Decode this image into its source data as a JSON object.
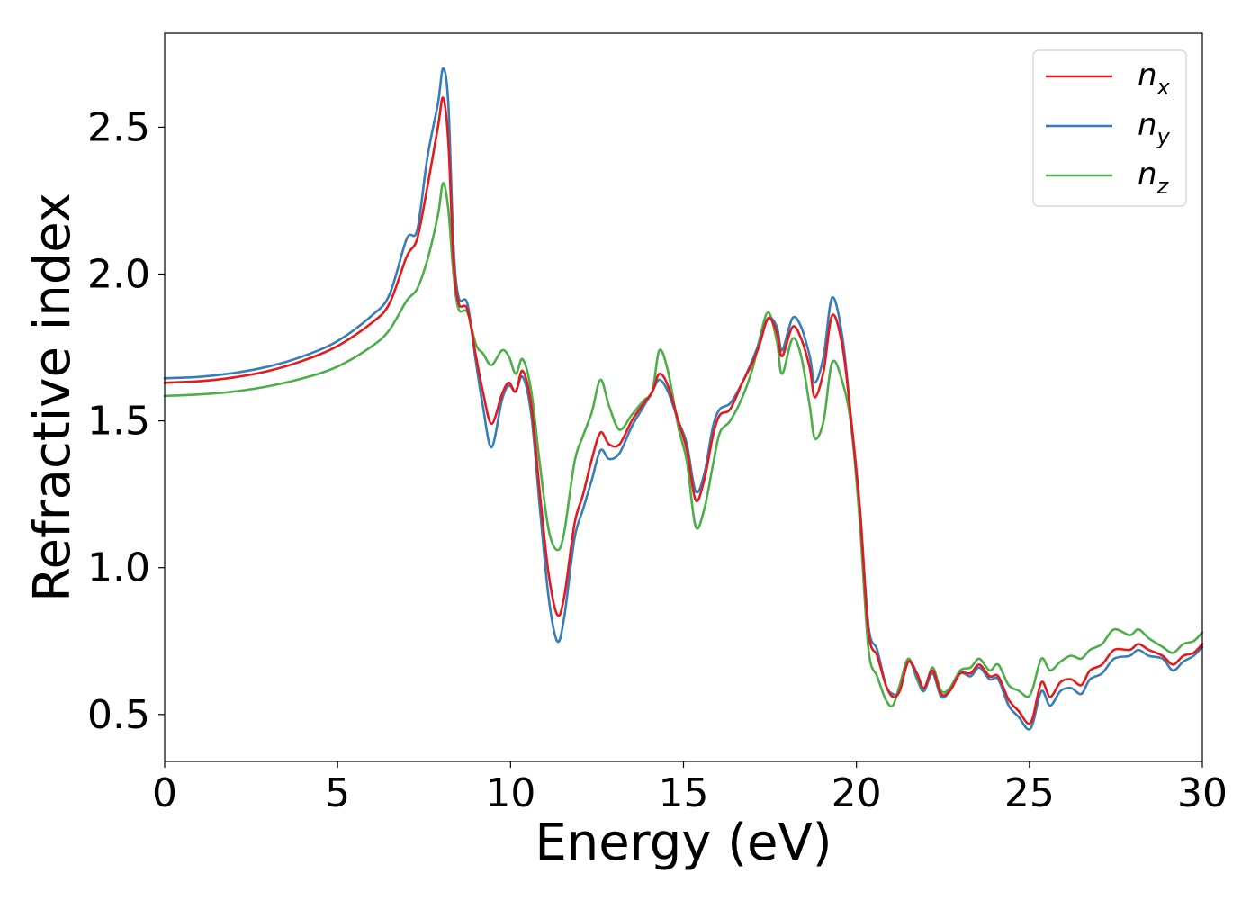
{
  "chart_data": {
    "type": "line",
    "title": "",
    "xlabel": "Energy (eV)",
    "ylabel": "Refractive index",
    "xlim": [
      0,
      30
    ],
    "ylim": [
      0.34,
      2.82
    ],
    "xticks": [
      0,
      5,
      10,
      15,
      20,
      25,
      30
    ],
    "xtick_labels": [
      "0",
      "5",
      "10",
      "15",
      "20",
      "25",
      "30"
    ],
    "yticks": [
      0.5,
      1.0,
      1.5,
      2.0,
      2.5
    ],
    "ytick_labels": [
      "0.5",
      "1.0",
      "1.5",
      "2.0",
      "2.5"
    ],
    "grid": false,
    "legend_position": "top-right",
    "series": [
      {
        "name": "n_x",
        "label_base": "n",
        "label_sub": "x",
        "color": "#e41a1c",
        "points": [
          [
            0,
            1.63
          ],
          [
            1,
            1.635
          ],
          [
            2,
            1.648
          ],
          [
            3,
            1.67
          ],
          [
            4,
            1.705
          ],
          [
            5,
            1.755
          ],
          [
            6,
            1.835
          ],
          [
            6.5,
            1.9
          ],
          [
            7,
            2.06
          ],
          [
            7.3,
            2.12
          ],
          [
            7.6,
            2.3
          ],
          [
            7.9,
            2.5
          ],
          [
            8.05,
            2.6
          ],
          [
            8.2,
            2.45
          ],
          [
            8.35,
            2.05
          ],
          [
            8.5,
            1.9
          ],
          [
            8.75,
            1.88
          ],
          [
            9.0,
            1.72
          ],
          [
            9.2,
            1.6
          ],
          [
            9.45,
            1.49
          ],
          [
            9.75,
            1.59
          ],
          [
            9.95,
            1.63
          ],
          [
            10.15,
            1.6
          ],
          [
            10.35,
            1.67
          ],
          [
            10.6,
            1.55
          ],
          [
            10.85,
            1.25
          ],
          [
            11.1,
            0.98
          ],
          [
            11.35,
            0.84
          ],
          [
            11.55,
            0.9
          ],
          [
            11.85,
            1.15
          ],
          [
            12.1,
            1.25
          ],
          [
            12.35,
            1.37
          ],
          [
            12.6,
            1.46
          ],
          [
            12.85,
            1.42
          ],
          [
            13.15,
            1.42
          ],
          [
            13.5,
            1.5
          ],
          [
            13.85,
            1.56
          ],
          [
            14.1,
            1.6
          ],
          [
            14.3,
            1.66
          ],
          [
            14.55,
            1.62
          ],
          [
            14.85,
            1.5
          ],
          [
            15.1,
            1.4
          ],
          [
            15.35,
            1.23
          ],
          [
            15.6,
            1.3
          ],
          [
            15.85,
            1.45
          ],
          [
            16.05,
            1.52
          ],
          [
            16.35,
            1.54
          ],
          [
            16.7,
            1.63
          ],
          [
            17.0,
            1.7
          ],
          [
            17.2,
            1.76
          ],
          [
            17.45,
            1.85
          ],
          [
            17.7,
            1.8
          ],
          [
            17.85,
            1.72
          ],
          [
            18.15,
            1.82
          ],
          [
            18.4,
            1.78
          ],
          [
            18.65,
            1.68
          ],
          [
            18.8,
            1.58
          ],
          [
            19.05,
            1.67
          ],
          [
            19.3,
            1.86
          ],
          [
            19.6,
            1.75
          ],
          [
            19.85,
            1.5
          ],
          [
            20.1,
            1.2
          ],
          [
            20.35,
            0.78
          ],
          [
            20.6,
            0.7
          ],
          [
            20.85,
            0.6
          ],
          [
            21.05,
            0.56
          ],
          [
            21.25,
            0.58
          ],
          [
            21.5,
            0.68
          ],
          [
            21.75,
            0.64
          ],
          [
            21.95,
            0.59
          ],
          [
            22.2,
            0.65
          ],
          [
            22.45,
            0.57
          ],
          [
            22.7,
            0.58
          ],
          [
            23.0,
            0.64
          ],
          [
            23.3,
            0.64
          ],
          [
            23.55,
            0.67
          ],
          [
            23.85,
            0.63
          ],
          [
            24.1,
            0.63
          ],
          [
            24.4,
            0.55
          ],
          [
            24.7,
            0.51
          ],
          [
            24.95,
            0.47
          ],
          [
            25.1,
            0.49
          ],
          [
            25.35,
            0.61
          ],
          [
            25.6,
            0.56
          ],
          [
            25.9,
            0.61
          ],
          [
            26.2,
            0.62
          ],
          [
            26.5,
            0.6
          ],
          [
            26.75,
            0.65
          ],
          [
            27.1,
            0.67
          ],
          [
            27.45,
            0.72
          ],
          [
            27.9,
            0.72
          ],
          [
            28.15,
            0.74
          ],
          [
            28.45,
            0.72
          ],
          [
            28.85,
            0.7
          ],
          [
            29.15,
            0.67
          ],
          [
            29.45,
            0.7
          ],
          [
            29.75,
            0.71
          ],
          [
            30,
            0.74
          ]
        ]
      },
      {
        "name": "n_y",
        "label_base": "n",
        "label_sub": "y",
        "color": "#377eb8",
        "points": [
          [
            0,
            1.645
          ],
          [
            1,
            1.65
          ],
          [
            2,
            1.663
          ],
          [
            3,
            1.685
          ],
          [
            4,
            1.72
          ],
          [
            5,
            1.772
          ],
          [
            6,
            1.86
          ],
          [
            6.5,
            1.93
          ],
          [
            7,
            2.12
          ],
          [
            7.3,
            2.15
          ],
          [
            7.6,
            2.4
          ],
          [
            7.9,
            2.58
          ],
          [
            8.05,
            2.7
          ],
          [
            8.2,
            2.58
          ],
          [
            8.35,
            2.1
          ],
          [
            8.5,
            1.92
          ],
          [
            8.75,
            1.9
          ],
          [
            9.0,
            1.7
          ],
          [
            9.2,
            1.55
          ],
          [
            9.45,
            1.41
          ],
          [
            9.75,
            1.57
          ],
          [
            9.95,
            1.62
          ],
          [
            10.15,
            1.6
          ],
          [
            10.35,
            1.65
          ],
          [
            10.6,
            1.52
          ],
          [
            10.85,
            1.2
          ],
          [
            11.1,
            0.9
          ],
          [
            11.35,
            0.75
          ],
          [
            11.55,
            0.83
          ],
          [
            11.85,
            1.1
          ],
          [
            12.1,
            1.2
          ],
          [
            12.35,
            1.3
          ],
          [
            12.6,
            1.4
          ],
          [
            12.85,
            1.37
          ],
          [
            13.15,
            1.39
          ],
          [
            13.5,
            1.48
          ],
          [
            13.85,
            1.55
          ],
          [
            14.1,
            1.6
          ],
          [
            14.3,
            1.64
          ],
          [
            14.55,
            1.6
          ],
          [
            14.85,
            1.5
          ],
          [
            15.1,
            1.42
          ],
          [
            15.35,
            1.26
          ],
          [
            15.6,
            1.32
          ],
          [
            15.85,
            1.48
          ],
          [
            16.05,
            1.54
          ],
          [
            16.35,
            1.56
          ],
          [
            16.7,
            1.63
          ],
          [
            17.0,
            1.71
          ],
          [
            17.2,
            1.77
          ],
          [
            17.45,
            1.85
          ],
          [
            17.7,
            1.82
          ],
          [
            17.85,
            1.74
          ],
          [
            18.15,
            1.85
          ],
          [
            18.4,
            1.82
          ],
          [
            18.65,
            1.72
          ],
          [
            18.8,
            1.63
          ],
          [
            19.05,
            1.72
          ],
          [
            19.3,
            1.92
          ],
          [
            19.6,
            1.78
          ],
          [
            19.85,
            1.5
          ],
          [
            20.1,
            1.2
          ],
          [
            20.35,
            0.8
          ],
          [
            20.6,
            0.72
          ],
          [
            20.85,
            0.6
          ],
          [
            21.05,
            0.57
          ],
          [
            21.25,
            0.58
          ],
          [
            21.5,
            0.68
          ],
          [
            21.75,
            0.63
          ],
          [
            21.95,
            0.58
          ],
          [
            22.2,
            0.64
          ],
          [
            22.45,
            0.56
          ],
          [
            22.7,
            0.58
          ],
          [
            23.0,
            0.64
          ],
          [
            23.3,
            0.63
          ],
          [
            23.55,
            0.66
          ],
          [
            23.85,
            0.62
          ],
          [
            24.1,
            0.62
          ],
          [
            24.4,
            0.53
          ],
          [
            24.7,
            0.49
          ],
          [
            24.95,
            0.45
          ],
          [
            25.1,
            0.47
          ],
          [
            25.35,
            0.58
          ],
          [
            25.6,
            0.53
          ],
          [
            25.9,
            0.58
          ],
          [
            26.2,
            0.59
          ],
          [
            26.5,
            0.57
          ],
          [
            26.75,
            0.62
          ],
          [
            27.1,
            0.64
          ],
          [
            27.45,
            0.69
          ],
          [
            27.9,
            0.7
          ],
          [
            28.15,
            0.72
          ],
          [
            28.45,
            0.7
          ],
          [
            28.85,
            0.69
          ],
          [
            29.15,
            0.65
          ],
          [
            29.45,
            0.68
          ],
          [
            29.75,
            0.7
          ],
          [
            30,
            0.73
          ]
        ]
      },
      {
        "name": "n_z",
        "label_base": "n",
        "label_sub": "z",
        "color": "#4daf4a",
        "points": [
          [
            0,
            1.585
          ],
          [
            1,
            1.59
          ],
          [
            2,
            1.6
          ],
          [
            3,
            1.618
          ],
          [
            4,
            1.645
          ],
          [
            5,
            1.685
          ],
          [
            6,
            1.755
          ],
          [
            6.5,
            1.81
          ],
          [
            7,
            1.91
          ],
          [
            7.3,
            1.95
          ],
          [
            7.6,
            2.05
          ],
          [
            7.9,
            2.2
          ],
          [
            8.05,
            2.31
          ],
          [
            8.2,
            2.22
          ],
          [
            8.35,
            2.0
          ],
          [
            8.5,
            1.88
          ],
          [
            8.75,
            1.87
          ],
          [
            9.0,
            1.76
          ],
          [
            9.2,
            1.73
          ],
          [
            9.45,
            1.69
          ],
          [
            9.75,
            1.74
          ],
          [
            9.95,
            1.72
          ],
          [
            10.15,
            1.66
          ],
          [
            10.35,
            1.71
          ],
          [
            10.6,
            1.6
          ],
          [
            10.85,
            1.35
          ],
          [
            11.1,
            1.13
          ],
          [
            11.35,
            1.06
          ],
          [
            11.55,
            1.12
          ],
          [
            11.85,
            1.36
          ],
          [
            12.1,
            1.45
          ],
          [
            12.35,
            1.53
          ],
          [
            12.6,
            1.64
          ],
          [
            12.85,
            1.55
          ],
          [
            13.15,
            1.47
          ],
          [
            13.5,
            1.52
          ],
          [
            13.85,
            1.57
          ],
          [
            14.1,
            1.6
          ],
          [
            14.3,
            1.74
          ],
          [
            14.55,
            1.67
          ],
          [
            14.85,
            1.48
          ],
          [
            15.1,
            1.36
          ],
          [
            15.35,
            1.14
          ],
          [
            15.6,
            1.2
          ],
          [
            15.85,
            1.35
          ],
          [
            16.05,
            1.46
          ],
          [
            16.35,
            1.5
          ],
          [
            16.7,
            1.58
          ],
          [
            17.0,
            1.68
          ],
          [
            17.2,
            1.78
          ],
          [
            17.45,
            1.87
          ],
          [
            17.7,
            1.77
          ],
          [
            17.85,
            1.66
          ],
          [
            18.15,
            1.78
          ],
          [
            18.4,
            1.72
          ],
          [
            18.65,
            1.55
          ],
          [
            18.8,
            1.44
          ],
          [
            19.05,
            1.5
          ],
          [
            19.3,
            1.7
          ],
          [
            19.6,
            1.63
          ],
          [
            19.85,
            1.48
          ],
          [
            20.1,
            1.15
          ],
          [
            20.35,
            0.72
          ],
          [
            20.6,
            0.63
          ],
          [
            20.85,
            0.55
          ],
          [
            21.05,
            0.53
          ],
          [
            21.25,
            0.6
          ],
          [
            21.5,
            0.69
          ],
          [
            21.75,
            0.62
          ],
          [
            21.95,
            0.58
          ],
          [
            22.2,
            0.66
          ],
          [
            22.45,
            0.58
          ],
          [
            22.7,
            0.59
          ],
          [
            23.0,
            0.65
          ],
          [
            23.3,
            0.66
          ],
          [
            23.55,
            0.69
          ],
          [
            23.85,
            0.65
          ],
          [
            24.1,
            0.67
          ],
          [
            24.4,
            0.6
          ],
          [
            24.7,
            0.58
          ],
          [
            24.95,
            0.56
          ],
          [
            25.1,
            0.59
          ],
          [
            25.35,
            0.69
          ],
          [
            25.6,
            0.65
          ],
          [
            25.9,
            0.68
          ],
          [
            26.2,
            0.7
          ],
          [
            26.5,
            0.69
          ],
          [
            26.75,
            0.72
          ],
          [
            27.1,
            0.74
          ],
          [
            27.45,
            0.79
          ],
          [
            27.9,
            0.77
          ],
          [
            28.15,
            0.79
          ],
          [
            28.45,
            0.76
          ],
          [
            28.85,
            0.73
          ],
          [
            29.15,
            0.71
          ],
          [
            29.45,
            0.74
          ],
          [
            29.75,
            0.75
          ],
          [
            30,
            0.78
          ]
        ]
      }
    ]
  }
}
